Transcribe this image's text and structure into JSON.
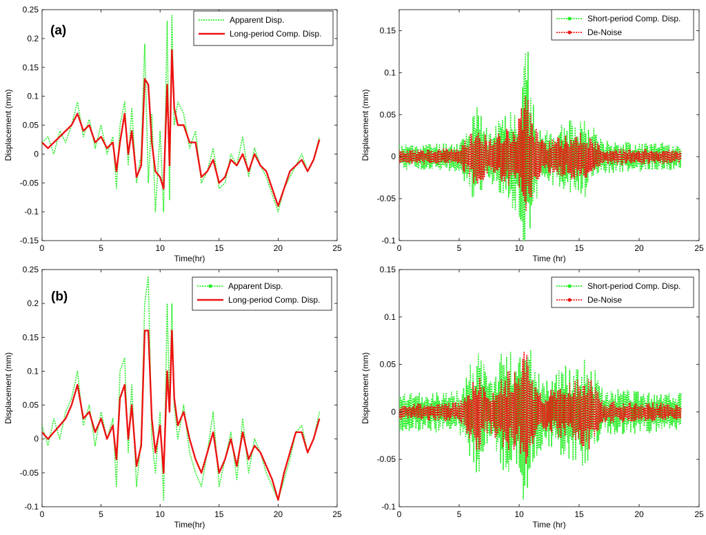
{
  "figure": {
    "title": ""
  },
  "colors": {
    "apparent": "#22ee22",
    "long_period": "#ee1111",
    "short_period": "#22ee22",
    "denoise": "#ee1111",
    "axis": "#000000"
  },
  "chart_data": [
    {
      "panel": "a-left",
      "type": "line",
      "tag": "(a)",
      "xlabel": "Time(hr)",
      "ylabel": "Displacement (mm)",
      "xlim": [
        0,
        25
      ],
      "ylim": [
        -0.15,
        0.25
      ],
      "xticks": [
        "0",
        "5",
        "10",
        "15",
        "20",
        "25"
      ],
      "yticks": [
        "-0.15",
        "-0.1",
        "-0.05",
        "0",
        "0.05",
        "0.1",
        "0.15",
        "0.2",
        "0.25"
      ],
      "legend_position": "top-right",
      "series": [
        {
          "name": "Apparent Disp.",
          "style": "dotted",
          "x": [
            0,
            0.5,
            1,
            1.5,
            2,
            2.5,
            3,
            3.5,
            4,
            4.5,
            5,
            5.5,
            6,
            6.3,
            6.6,
            7,
            7.3,
            7.6,
            8,
            8.4,
            8.7,
            9,
            9.3,
            9.6,
            10,
            10.3,
            10.6,
            10.8,
            11,
            11.2,
            11.5,
            12,
            12.5,
            13,
            13.5,
            14,
            14.5,
            15,
            15.5,
            16,
            16.5,
            17,
            17.5,
            18,
            18.5,
            19,
            19.5,
            20,
            20.5,
            21,
            21.5,
            22,
            22.5,
            23,
            23.5
          ],
          "y": [
            0.02,
            0.03,
            0.0,
            0.04,
            0.02,
            0.05,
            0.09,
            0.03,
            0.06,
            0.01,
            0.05,
            0.0,
            0.03,
            -0.06,
            0.05,
            0.09,
            -0.02,
            0.08,
            -0.05,
            0.0,
            0.19,
            -0.05,
            0.07,
            -0.1,
            0.04,
            -0.1,
            0.23,
            -0.08,
            0.24,
            0.05,
            0.09,
            0.07,
            0.01,
            0.04,
            -0.05,
            -0.03,
            0.01,
            -0.06,
            -0.05,
            0.0,
            -0.02,
            0.03,
            -0.04,
            0.01,
            -0.02,
            -0.04,
            -0.07,
            -0.1,
            -0.06,
            -0.04,
            -0.02,
            0.0,
            -0.03,
            -0.01,
            0.03
          ]
        },
        {
          "name": "Long-period Comp. Disp.",
          "style": "solid",
          "x": [
            0,
            0.5,
            1,
            1.5,
            2,
            2.5,
            3,
            3.5,
            4,
            4.5,
            5,
            5.5,
            6,
            6.3,
            6.6,
            7,
            7.3,
            7.6,
            8,
            8.4,
            8.7,
            9,
            9.3,
            9.6,
            10,
            10.3,
            10.6,
            10.8,
            11,
            11.2,
            11.5,
            12,
            12.5,
            13,
            13.5,
            14,
            14.5,
            15,
            15.5,
            16,
            16.5,
            17,
            17.5,
            18,
            18.5,
            19,
            19.5,
            20,
            20.5,
            21,
            21.5,
            22,
            22.5,
            23,
            23.5
          ],
          "y": [
            0.02,
            0.01,
            0.02,
            0.03,
            0.04,
            0.05,
            0.07,
            0.04,
            0.05,
            0.02,
            0.03,
            0.01,
            0.02,
            -0.03,
            0.02,
            0.07,
            0.0,
            0.04,
            -0.04,
            -0.02,
            0.13,
            0.12,
            0.02,
            -0.03,
            -0.04,
            -0.06,
            0.12,
            -0.02,
            0.18,
            0.08,
            0.05,
            0.05,
            0.02,
            0.02,
            -0.04,
            -0.03,
            -0.01,
            -0.05,
            -0.04,
            -0.01,
            -0.02,
            0.0,
            -0.03,
            0.0,
            -0.02,
            -0.03,
            -0.06,
            -0.09,
            -0.06,
            -0.03,
            -0.02,
            -0.01,
            -0.03,
            -0.01,
            0.025
          ]
        }
      ]
    },
    {
      "panel": "a-right",
      "type": "line",
      "tag": "",
      "xlabel": "Time (hr)",
      "ylabel": "Displacement (mm)",
      "xlim": [
        0,
        25
      ],
      "ylim": [
        -0.1,
        0.175
      ],
      "xticks": [
        "0",
        "5",
        "10",
        "15",
        "20",
        "25"
      ],
      "yticks": [
        "-0.1",
        "-0.05",
        "0",
        "0.05",
        "0.1",
        "0.15"
      ],
      "legend_position": "top-right",
      "series": [
        {
          "name": "Short-period Comp. Disp.",
          "style": "dotted-marker",
          "seed": 11,
          "envelope": [
            [
              0,
              0.015
            ],
            [
              5,
              0.018
            ],
            [
              6.5,
              0.06
            ],
            [
              7.5,
              0.03
            ],
            [
              9,
              0.06
            ],
            [
              10,
              0.07
            ],
            [
              10.6,
              0.16
            ],
            [
              11,
              0.07
            ],
            [
              12,
              0.03
            ],
            [
              15.5,
              0.05
            ],
            [
              17,
              0.02
            ],
            [
              23.5,
              0.015
            ]
          ]
        },
        {
          "name": "De-Noise",
          "style": "dotted-marker",
          "seed": 23,
          "envelope": [
            [
              0,
              0.008
            ],
            [
              5,
              0.01
            ],
            [
              6.5,
              0.04
            ],
            [
              7.5,
              0.02
            ],
            [
              9,
              0.04
            ],
            [
              10,
              0.05
            ],
            [
              10.6,
              0.1
            ],
            [
              11,
              0.05
            ],
            [
              12,
              0.02
            ],
            [
              15.5,
              0.03
            ],
            [
              17,
              0.01
            ],
            [
              23.5,
              0.008
            ]
          ]
        }
      ]
    },
    {
      "panel": "b-left",
      "type": "line",
      "tag": "(b)",
      "xlabel": "Time(hr)",
      "ylabel": "Displacement (mm)",
      "xlim": [
        0,
        25
      ],
      "ylim": [
        -0.1,
        0.25
      ],
      "xticks": [
        "0",
        "5",
        "10",
        "15",
        "20",
        "25"
      ],
      "yticks": [
        "-0.1",
        "-0.05",
        "0",
        "0.05",
        "0.1",
        "0.15",
        "0.2",
        "0.25"
      ],
      "legend_position": "top-right",
      "series": [
        {
          "name": "Apparent Disp.",
          "style": "dotted-marker",
          "x": [
            0,
            0.5,
            1,
            1.5,
            2,
            2.5,
            3,
            3.5,
            4,
            4.5,
            5,
            5.5,
            6,
            6.3,
            6.6,
            7,
            7.3,
            7.6,
            8,
            8.4,
            8.7,
            9,
            9.3,
            9.6,
            10,
            10.3,
            10.6,
            10.8,
            11,
            11.2,
            11.5,
            12,
            12.5,
            13,
            13.5,
            14,
            14.5,
            15,
            15.5,
            16,
            16.5,
            17,
            17.5,
            18,
            18.5,
            19,
            19.5,
            20,
            20.5,
            21,
            21.5,
            22,
            22.5,
            23,
            23.5
          ],
          "y": [
            0.02,
            -0.01,
            0.03,
            0.0,
            0.04,
            0.06,
            0.1,
            0.02,
            0.05,
            -0.01,
            0.04,
            0.0,
            0.03,
            -0.07,
            0.1,
            0.12,
            -0.02,
            0.08,
            -0.07,
            0.0,
            0.2,
            0.24,
            0.0,
            -0.05,
            0.04,
            -0.09,
            0.2,
            0.05,
            0.2,
            0.05,
            0.0,
            0.05,
            -0.02,
            -0.05,
            -0.07,
            -0.02,
            0.04,
            -0.07,
            -0.03,
            0.01,
            -0.06,
            0.03,
            -0.05,
            0.0,
            -0.02,
            -0.05,
            -0.07,
            -0.09,
            -0.06,
            -0.03,
            0.01,
            0.02,
            -0.02,
            0.0,
            0.04
          ]
        },
        {
          "name": "Long-period Comp. Disp.",
          "style": "solid",
          "x": [
            0,
            0.5,
            1,
            1.5,
            2,
            2.5,
            3,
            3.5,
            4,
            4.5,
            5,
            5.5,
            6,
            6.3,
            6.6,
            7,
            7.3,
            7.6,
            8,
            8.4,
            8.7,
            9,
            9.3,
            9.6,
            10,
            10.3,
            10.6,
            10.8,
            11,
            11.2,
            11.5,
            12,
            12.5,
            13,
            13.5,
            14,
            14.5,
            15,
            15.5,
            16,
            16.5,
            17,
            17.5,
            18,
            18.5,
            19,
            19.5,
            20,
            20.5,
            21,
            21.5,
            22,
            22.5,
            23,
            23.5
          ],
          "y": [
            0.01,
            0.0,
            0.01,
            0.02,
            0.03,
            0.05,
            0.08,
            0.03,
            0.04,
            0.01,
            0.03,
            0.0,
            0.02,
            -0.03,
            0.06,
            0.08,
            0.0,
            0.05,
            -0.04,
            -0.01,
            0.16,
            0.16,
            0.03,
            -0.02,
            0.02,
            -0.05,
            0.1,
            0.04,
            0.16,
            0.06,
            0.02,
            0.04,
            0.0,
            -0.03,
            -0.05,
            -0.02,
            0.01,
            -0.05,
            -0.03,
            0.0,
            -0.04,
            0.01,
            -0.03,
            -0.01,
            -0.02,
            -0.04,
            -0.06,
            -0.09,
            -0.05,
            -0.02,
            0.01,
            0.01,
            -0.02,
            0.0,
            0.03
          ]
        }
      ]
    },
    {
      "panel": "b-right",
      "type": "line",
      "tag": "",
      "xlabel": "Time (hr)",
      "ylabel": "Displacement (mm)",
      "xlim": [
        0,
        25
      ],
      "ylim": [
        -0.1,
        0.15
      ],
      "xticks": [
        "0",
        "5",
        "10",
        "15",
        "20",
        "25"
      ],
      "yticks": [
        "-0.1",
        "-0.05",
        "0",
        "0.05",
        "0.1",
        "0.15"
      ],
      "legend_position": "top-right",
      "series": [
        {
          "name": "Short-period Comp. Disp.",
          "style": "dotted-marker",
          "seed": 37,
          "envelope": [
            [
              0,
              0.02
            ],
            [
              5,
              0.022
            ],
            [
              6.5,
              0.075
            ],
            [
              7.5,
              0.035
            ],
            [
              9,
              0.075
            ],
            [
              10,
              0.06
            ],
            [
              10.6,
              0.125
            ],
            [
              11,
              0.07
            ],
            [
              12,
              0.035
            ],
            [
              15.8,
              0.062
            ],
            [
              17,
              0.025
            ],
            [
              23.5,
              0.02
            ]
          ]
        },
        {
          "name": "De-Noise",
          "style": "dotted-marker",
          "seed": 53,
          "envelope": [
            [
              0,
              0.008
            ],
            [
              5,
              0.01
            ],
            [
              6.5,
              0.045
            ],
            [
              7.5,
              0.02
            ],
            [
              9,
              0.045
            ],
            [
              10,
              0.04
            ],
            [
              10.6,
              0.075
            ],
            [
              11,
              0.04
            ],
            [
              12,
              0.02
            ],
            [
              15.8,
              0.04
            ],
            [
              17,
              0.012
            ],
            [
              23.5,
              0.008
            ]
          ]
        }
      ]
    }
  ]
}
